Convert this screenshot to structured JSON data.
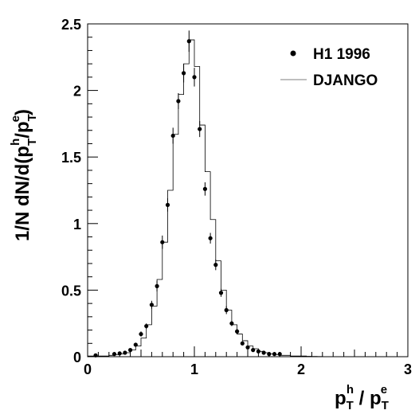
{
  "chart_data": {
    "type": "scatter",
    "title": "",
    "xlabel": "p_T^h / p_T^e",
    "ylabel": "1/N dN/d(p_T^h/p_T^e)",
    "xlim": [
      0,
      3
    ],
    "ylim": [
      0,
      2.5
    ],
    "x_ticks": [
      "0",
      "1",
      "2",
      "3"
    ],
    "y_ticks": [
      "0",
      "0.5",
      "1",
      "1.5",
      "2",
      "2.5"
    ],
    "legend_position": "top-right",
    "series": [
      {
        "name": "H1 1996",
        "style": "points-with-error-bars",
        "x": [
          0.075,
          0.25,
          0.3,
          0.35,
          0.4,
          0.45,
          0.5,
          0.55,
          0.6,
          0.65,
          0.7,
          0.75,
          0.8,
          0.85,
          0.9,
          0.95,
          1.0,
          1.05,
          1.1,
          1.15,
          1.2,
          1.25,
          1.3,
          1.35,
          1.4,
          1.45,
          1.5,
          1.55,
          1.6,
          1.65,
          1.7,
          1.75,
          1.8
        ],
        "y": [
          0.01,
          0.02,
          0.025,
          0.03,
          0.05,
          0.09,
          0.17,
          0.23,
          0.39,
          0.53,
          0.86,
          1.14,
          1.66,
          1.92,
          2.13,
          2.37,
          2.1,
          1.71,
          1.26,
          0.89,
          0.69,
          0.48,
          0.35,
          0.25,
          0.19,
          0.1,
          0.07,
          0.05,
          0.04,
          0.03,
          0.02,
          0.02,
          0.02
        ],
        "yerr": [
          0.01,
          0.01,
          0.01,
          0.01,
          0.01,
          0.015,
          0.02,
          0.02,
          0.03,
          0.04,
          0.05,
          0.05,
          0.06,
          0.06,
          0.07,
          0.08,
          0.07,
          0.06,
          0.05,
          0.04,
          0.04,
          0.03,
          0.03,
          0.02,
          0.02,
          0.015,
          0.01,
          0.01,
          0.01,
          0.01,
          0.01,
          0.01,
          0.01
        ]
      },
      {
        "name": "DJANGO",
        "style": "step-histogram",
        "bin_edges": [
          0.0,
          0.05,
          0.1,
          0.15,
          0.2,
          0.25,
          0.3,
          0.35,
          0.4,
          0.45,
          0.5,
          0.55,
          0.6,
          0.65,
          0.7,
          0.75,
          0.8,
          0.85,
          0.9,
          0.95,
          1.0,
          1.05,
          1.1,
          1.15,
          1.2,
          1.25,
          1.3,
          1.35,
          1.4,
          1.45,
          1.5,
          1.55,
          1.6,
          1.65,
          1.7,
          1.75,
          1.8,
          1.85,
          1.9,
          1.95,
          2.0,
          2.05,
          2.1,
          2.15,
          2.2
        ],
        "values": [
          0.005,
          0.005,
          0.005,
          0.005,
          0.01,
          0.015,
          0.02,
          0.03,
          0.05,
          0.08,
          0.14,
          0.24,
          0.38,
          0.58,
          0.86,
          1.25,
          1.67,
          1.97,
          2.2,
          2.38,
          2.18,
          1.74,
          1.39,
          1.03,
          0.72,
          0.5,
          0.35,
          0.24,
          0.17,
          0.12,
          0.08,
          0.06,
          0.04,
          0.03,
          0.02,
          0.015,
          0.01,
          0.01,
          0.005,
          0.005,
          0.005,
          0.003,
          0.002,
          0.001
        ]
      }
    ]
  }
}
